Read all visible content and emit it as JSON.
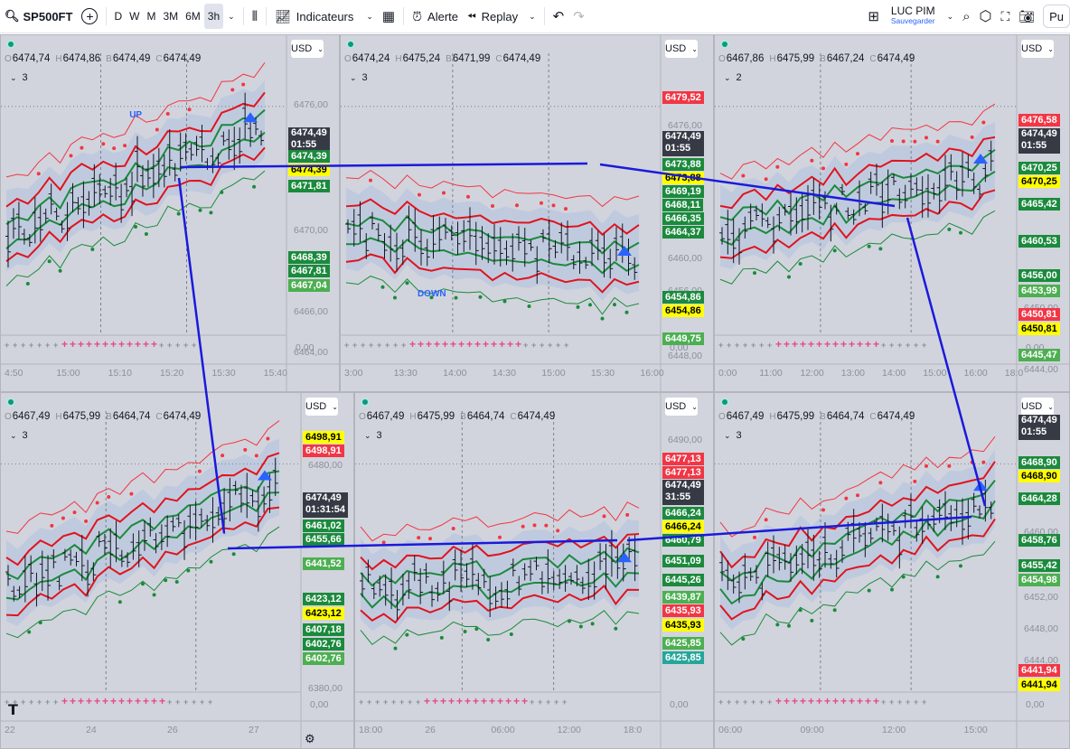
{
  "toolbar": {
    "symbol": "SP500FT",
    "intervals": [
      "D",
      "W",
      "M",
      "3M",
      "6M",
      "3h"
    ],
    "active_interval": "3h",
    "indicators": "Indicateurs",
    "alert": "Alerte",
    "replay": "Replay",
    "layout_name": "LUC PIM",
    "layout_sub": "Sauvegarder",
    "publish": "Pu"
  },
  "panels": [
    {
      "id": "p1",
      "ohlc": [
        "6474,74",
        "6474,86",
        "6474,49",
        "6474,49"
      ],
      "count": "3",
      "currency": "USD",
      "tags": [
        {
          "t": "6474,49\n01:55",
          "bg": "#363a45",
          "fg": "#fff",
          "y": 102
        },
        {
          "t": "6474,39",
          "bg": "#1b8a3d",
          "fg": "#fff",
          "y": 127
        },
        {
          "t": "6474,39",
          "bg": "#ffff00",
          "fg": "#000",
          "y": 142
        },
        {
          "t": "6471,81",
          "bg": "#1b8a3d",
          "fg": "#fff",
          "y": 160
        },
        {
          "t": "6468,39",
          "bg": "#1b8a3d",
          "fg": "#fff",
          "y": 239
        },
        {
          "t": "6467,81",
          "bg": "#1b8a3d",
          "fg": "#fff",
          "y": 254
        },
        {
          "t": "6467,04",
          "bg": "#4caf50",
          "fg": "#fff",
          "y": 270
        }
      ],
      "price_ticks": [
        {
          "t": "6470,00",
          "y": 210
        },
        {
          "t": "6466,00",
          "y": 300
        },
        {
          "t": "6464,00",
          "y": 345
        },
        {
          "t": "6476,00",
          "y": 71
        }
      ],
      "time_ticks": [
        "4:50",
        "15:00",
        "15:10",
        "15:20",
        "15:30",
        "15:40"
      ],
      "osc": "0,00",
      "signal": "UP"
    },
    {
      "id": "p2",
      "ohlc": [
        "6474,24",
        "6475,24",
        "6471,99",
        "6474,49"
      ],
      "count": "3",
      "currency": "USD",
      "tags": [
        {
          "t": "6479,52",
          "bg": "#f23645",
          "fg": "#fff",
          "y": 62
        },
        {
          "t": "6474,49\n01:55",
          "bg": "#363a45",
          "fg": "#fff",
          "y": 106
        },
        {
          "t": "6473,88",
          "bg": "#1b8a3d",
          "fg": "#fff",
          "y": 136
        },
        {
          "t": "6473,88",
          "bg": "#ffff00",
          "fg": "#000",
          "y": 151
        },
        {
          "t": "6469,19",
          "bg": "#1b8a3d",
          "fg": "#fff",
          "y": 166
        },
        {
          "t": "6468,11",
          "bg": "#1b8a3d",
          "fg": "#fff",
          "y": 181
        },
        {
          "t": "6466,35",
          "bg": "#1b8a3d",
          "fg": "#fff",
          "y": 196
        },
        {
          "t": "6464,37",
          "bg": "#1b8a3d",
          "fg": "#fff",
          "y": 211
        },
        {
          "t": "6454,86",
          "bg": "#1b8a3d",
          "fg": "#fff",
          "y": 283
        },
        {
          "t": "6454,86",
          "bg": "#ffff00",
          "fg": "#000",
          "y": 298
        },
        {
          "t": "6449,75",
          "bg": "#4caf50",
          "fg": "#fff",
          "y": 329
        }
      ],
      "price_ticks": [
        {
          "t": "6476,00",
          "y": 94
        },
        {
          "t": "6460,00",
          "y": 241
        },
        {
          "t": "6456,00",
          "y": 277
        },
        {
          "t": "6448,00",
          "y": 349
        }
      ],
      "time_ticks": [
        "3:00",
        "13:30",
        "14:00",
        "14:30",
        "15:00",
        "15:30",
        "16:00"
      ],
      "osc": "0,00",
      "signal": "DOWN"
    },
    {
      "id": "p3",
      "ohlc": [
        "6467,86",
        "6475,99",
        "6467,24",
        "6474,49"
      ],
      "count": "2",
      "currency": "USD",
      "tags": [
        {
          "t": "6476,58",
          "bg": "#f23645",
          "fg": "#fff",
          "y": 87
        },
        {
          "t": "6474,49\n01:55",
          "bg": "#363a45",
          "fg": "#fff",
          "y": 103
        },
        {
          "t": "6470,25",
          "bg": "#1b8a3d",
          "fg": "#fff",
          "y": 140
        },
        {
          "t": "6470,25",
          "bg": "#ffff00",
          "fg": "#000",
          "y": 155
        },
        {
          "t": "6465,42",
          "bg": "#1b8a3d",
          "fg": "#fff",
          "y": 180
        },
        {
          "t": "6460,53",
          "bg": "#1b8a3d",
          "fg": "#fff",
          "y": 221
        },
        {
          "t": "6456,00",
          "bg": "#1b8a3d",
          "fg": "#fff",
          "y": 259
        },
        {
          "t": "6453,99",
          "bg": "#4caf50",
          "fg": "#fff",
          "y": 276
        },
        {
          "t": "6450,81",
          "bg": "#f23645",
          "fg": "#fff",
          "y": 302
        },
        {
          "t": "6450,81",
          "bg": "#ffff00",
          "fg": "#000",
          "y": 318
        },
        {
          "t": "6445,47",
          "bg": "#4caf50",
          "fg": "#fff",
          "y": 347
        }
      ],
      "price_ticks": [
        {
          "t": "6450,00",
          "y": 296
        },
        {
          "t": "6444,00",
          "y": 364
        }
      ],
      "time_ticks": [
        "0:00",
        "11:00",
        "12:00",
        "13:00",
        "14:00",
        "15:00",
        "16:00",
        "18:0"
      ],
      "osc": "0,00"
    },
    {
      "id": "p4",
      "ohlc": [
        "6467,49",
        "6475,99",
        "6464,74",
        "6474,49"
      ],
      "count": "3",
      "currency": "USD",
      "tags": [
        {
          "t": "6498,91",
          "bg": "#ffff00",
          "fg": "#000",
          "y": 42
        },
        {
          "t": "6498,91",
          "bg": "#f23645",
          "fg": "#fff",
          "y": 57
        },
        {
          "t": "6474,49\n01:31:54",
          "bg": "#363a45",
          "fg": "#fff",
          "y": 110
        },
        {
          "t": "6461,02",
          "bg": "#1b8a3d",
          "fg": "#fff",
          "y": 140
        },
        {
          "t": "6455,66",
          "bg": "#1b8a3d",
          "fg": "#fff",
          "y": 155
        },
        {
          "t": "6441,52",
          "bg": "#4caf50",
          "fg": "#fff",
          "y": 182
        },
        {
          "t": "6423,12",
          "bg": "#1b8a3d",
          "fg": "#fff",
          "y": 221
        },
        {
          "t": "6423,12",
          "bg": "#ffff00",
          "fg": "#000",
          "y": 237
        },
        {
          "t": "6407,18",
          "bg": "#1b8a3d",
          "fg": "#fff",
          "y": 255
        },
        {
          "t": "6402,76",
          "bg": "#1b8a3d",
          "fg": "#fff",
          "y": 271
        },
        {
          "t": "6402,76",
          "bg": "#4caf50",
          "fg": "#fff",
          "y": 287
        }
      ],
      "price_ticks": [
        {
          "t": "6480,00",
          "y": 74
        },
        {
          "t": "6380,00",
          "y": 321
        }
      ],
      "time_ticks": [
        "22",
        "24",
        "26",
        "27"
      ],
      "osc": "0,00"
    },
    {
      "id": "p5",
      "ohlc": [
        "6467,49",
        "6475,99",
        "6464,74",
        "6474,49"
      ],
      "count": "3",
      "currency": "USD",
      "tags": [
        {
          "t": "6477,13",
          "bg": "#f23645",
          "fg": "#fff",
          "y": 66
        },
        {
          "t": "6477,13",
          "bg": "#f23645",
          "fg": "#fff",
          "y": 81
        },
        {
          "t": "6474,49\n31:55",
          "bg": "#363a45",
          "fg": "#fff",
          "y": 96
        },
        {
          "t": "6466,24",
          "bg": "#1b8a3d",
          "fg": "#fff",
          "y": 126
        },
        {
          "t": "6466,24",
          "bg": "#ffff00",
          "fg": "#000",
          "y": 141
        },
        {
          "t": "6460,79",
          "bg": "#1b8a3d",
          "fg": "#fff",
          "y": 156
        },
        {
          "t": "6451,09",
          "bg": "#1b8a3d",
          "fg": "#fff",
          "y": 179
        },
        {
          "t": "6445,26",
          "bg": "#1b8a3d",
          "fg": "#fff",
          "y": 200
        },
        {
          "t": "6439,87",
          "bg": "#4caf50",
          "fg": "#fff",
          "y": 219
        },
        {
          "t": "6435,93",
          "bg": "#f23645",
          "fg": "#fff",
          "y": 234
        },
        {
          "t": "6435,93",
          "bg": "#ffff00",
          "fg": "#000",
          "y": 250
        },
        {
          "t": "6425,85",
          "bg": "#4caf50",
          "fg": "#fff",
          "y": 270
        },
        {
          "t": "6425,85",
          "bg": "#26a69a",
          "fg": "#fff",
          "y": 286
        }
      ],
      "price_ticks": [
        {
          "t": "6490,00",
          "y": 46
        }
      ],
      "time_ticks": [
        "18:00",
        "26",
        "06:00",
        "12:00",
        "18:0"
      ],
      "osc": "0,00"
    },
    {
      "id": "p6",
      "ohlc": [
        "6467,49",
        "6475,99",
        "6464,74",
        "6474,49"
      ],
      "count": "3",
      "currency": "USD",
      "tags": [
        {
          "t": "6474,49\n01:55",
          "bg": "#363a45",
          "fg": "#fff",
          "y": 24
        },
        {
          "t": "6468,90",
          "bg": "#1b8a3d",
          "fg": "#fff",
          "y": 70
        },
        {
          "t": "6468,90",
          "bg": "#ffff00",
          "fg": "#000",
          "y": 85
        },
        {
          "t": "6464,28",
          "bg": "#1b8a3d",
          "fg": "#fff",
          "y": 110
        },
        {
          "t": "6458,76",
          "bg": "#1b8a3d",
          "fg": "#fff",
          "y": 156
        },
        {
          "t": "6455,42",
          "bg": "#1b8a3d",
          "fg": "#fff",
          "y": 184
        },
        {
          "t": "6454,98",
          "bg": "#4caf50",
          "fg": "#fff",
          "y": 200
        },
        {
          "t": "6441,94",
          "bg": "#f23645",
          "fg": "#fff",
          "y": 300
        },
        {
          "t": "6441,94",
          "bg": "#ffff00",
          "fg": "#000",
          "y": 316
        }
      ],
      "price_ticks": [
        {
          "t": "6460,00",
          "y": 148
        },
        {
          "t": "6452,00",
          "y": 220
        },
        {
          "t": "6448,00",
          "y": 255
        },
        {
          "t": "6444,00",
          "y": 290
        }
      ],
      "time_ticks": [
        "06:00",
        "09:00",
        "12:00",
        "15:00"
      ],
      "osc": "0,00"
    }
  ]
}
